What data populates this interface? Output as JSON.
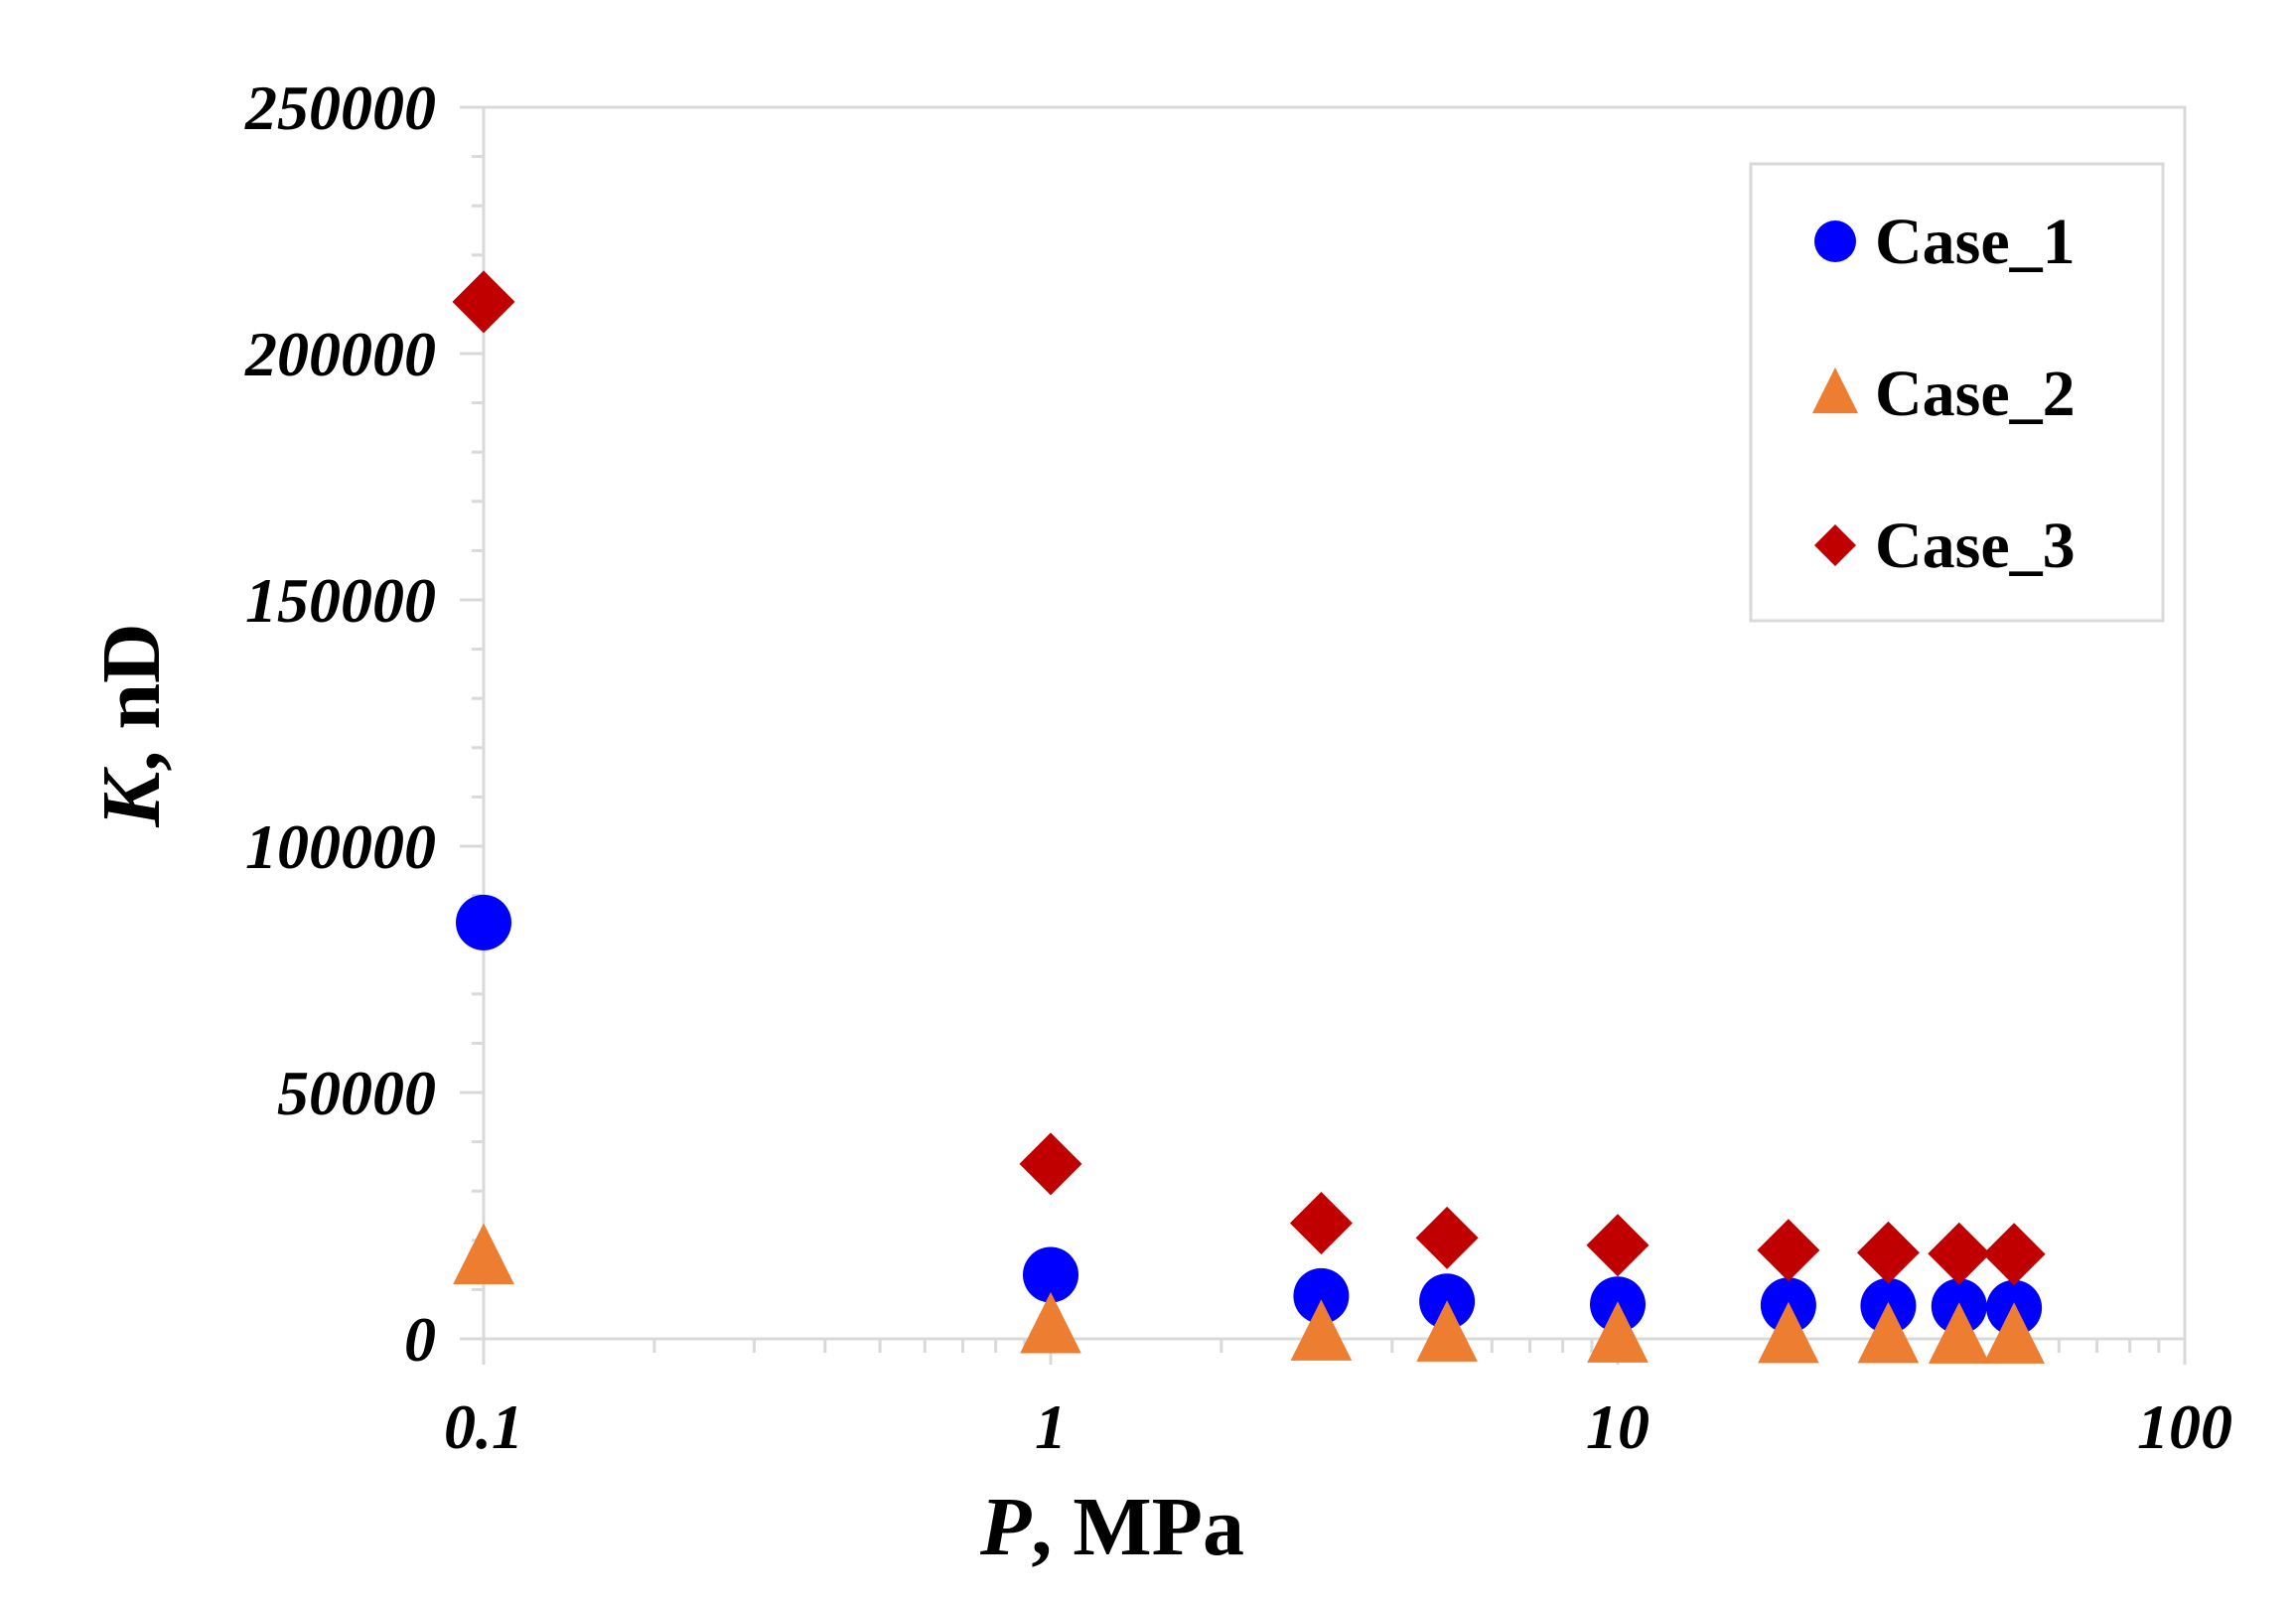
{
  "chart_data": {
    "type": "scatter",
    "title": "",
    "xlabel": {
      "symbol": "P",
      "unit": ", MPa"
    },
    "ylabel": {
      "symbol": "K",
      "unit": ", nD"
    },
    "xscale": "log",
    "xlim": [
      0.1,
      100
    ],
    "ylim": [
      0,
      250000
    ],
    "x_ticks": [
      {
        "value": 0.1,
        "label": "0.1"
      },
      {
        "value": 1,
        "label": "1"
      },
      {
        "value": 10,
        "label": "10"
      },
      {
        "value": 100,
        "label": "100"
      }
    ],
    "y_ticks": [
      {
        "value": 0,
        "label": "0"
      },
      {
        "value": 50000,
        "label": "50000"
      },
      {
        "value": 100000,
        "label": "100000"
      },
      {
        "value": 150000,
        "label": "150000"
      },
      {
        "value": 200000,
        "label": "200000"
      },
      {
        "value": 250000,
        "label": "250000"
      }
    ],
    "y_minor_step": 10000,
    "grid": false,
    "legend_position": "top-right",
    "series": [
      {
        "name": "Case_1",
        "marker": "circle",
        "color": "#0000FF",
        "points": [
          {
            "x": 0.1,
            "y": 84500
          },
          {
            "x": 1,
            "y": 13000
          },
          {
            "x": 3,
            "y": 8700
          },
          {
            "x": 5,
            "y": 7600
          },
          {
            "x": 10,
            "y": 7000
          },
          {
            "x": 20,
            "y": 6800
          },
          {
            "x": 30,
            "y": 6700
          },
          {
            "x": 40,
            "y": 6600
          },
          {
            "x": 50,
            "y": 6300
          }
        ]
      },
      {
        "name": "Case_2",
        "marker": "triangle",
        "color": "#ED7D31",
        "points": [
          {
            "x": 0.1,
            "y": 16500
          },
          {
            "x": 1,
            "y": 2500
          },
          {
            "x": 3,
            "y": 1000
          },
          {
            "x": 5,
            "y": 800
          },
          {
            "x": 10,
            "y": 600
          },
          {
            "x": 20,
            "y": 500
          },
          {
            "x": 30,
            "y": 500
          },
          {
            "x": 40,
            "y": 400
          },
          {
            "x": 50,
            "y": 400
          }
        ]
      },
      {
        "name": "Case_3",
        "marker": "diamond",
        "color": "#C00000",
        "points": [
          {
            "x": 0.1,
            "y": 210500
          },
          {
            "x": 1,
            "y": 35500
          },
          {
            "x": 3,
            "y": 23500
          },
          {
            "x": 5,
            "y": 20500
          },
          {
            "x": 10,
            "y": 19000
          },
          {
            "x": 20,
            "y": 18000
          },
          {
            "x": 30,
            "y": 17500
          },
          {
            "x": 40,
            "y": 17300
          },
          {
            "x": 50,
            "y": 17200
          }
        ]
      }
    ]
  }
}
